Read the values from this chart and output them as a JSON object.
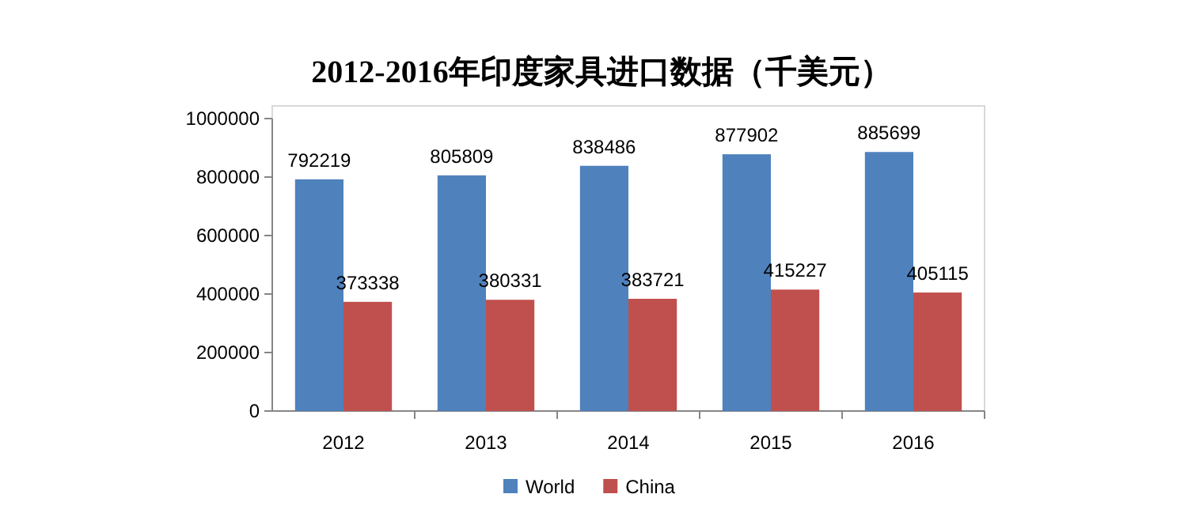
{
  "chart_data": {
    "type": "bar",
    "title": "2012-2016年印度家具进口数据（千美元）",
    "categories": [
      "2012",
      "2013",
      "2014",
      "2015",
      "2016"
    ],
    "series": [
      {
        "name": "World",
        "color": "#4f81bd",
        "values": [
          792219,
          805809,
          838486,
          877902,
          885699
        ]
      },
      {
        "name": "China",
        "color": "#c0504d",
        "values": [
          373338,
          380331,
          383721,
          415227,
          405115
        ]
      }
    ],
    "ylim": [
      0,
      1000000
    ],
    "yticks": [
      0,
      200000,
      400000,
      600000,
      800000,
      1000000
    ],
    "data_labels": true,
    "legend": "bottom"
  }
}
